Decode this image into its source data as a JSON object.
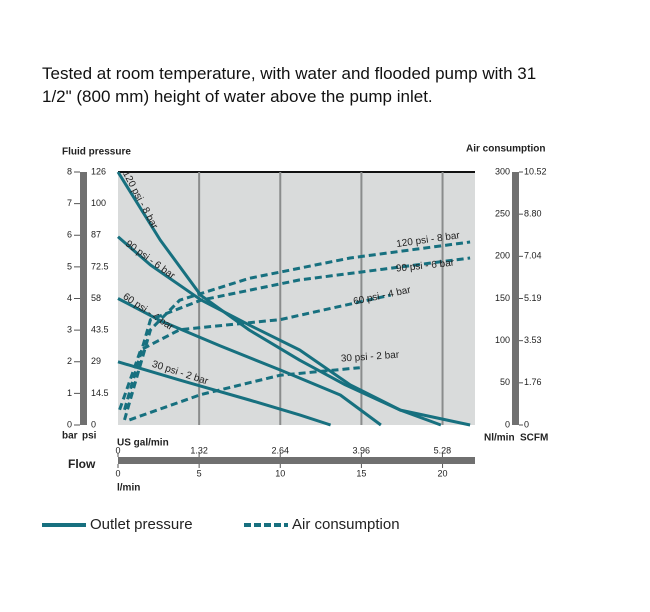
{
  "caption": "Tested at room temperature, with water and flooded pump with 31 1/2\" (800 mm) height of water above the pump inlet.",
  "chart_data": {
    "type": "line",
    "y_title": "Fluid pressure",
    "y2_title": "Air consumption",
    "y_unit": "bar",
    "y_alt_unit": "psi",
    "y2_unit": "Nl/min",
    "y2_alt_unit": "SCFM",
    "x_title": "Flow",
    "x_unit": "l/min",
    "x2_unit": "US gal/min",
    "xlim": [
      0,
      22
    ],
    "xticks": [
      0,
      5,
      10,
      15,
      20
    ],
    "x2lim": [
      0,
      5.81
    ],
    "x2ticks": [
      0,
      1.32,
      2.64,
      3.96,
      5.28
    ],
    "ylim": [
      0,
      8
    ],
    "yticks": [
      0,
      1,
      2,
      3,
      4,
      5,
      6,
      7,
      8
    ],
    "y_alt_ticks": [
      0,
      14.5,
      29,
      43.5,
      58,
      72.5,
      87,
      100,
      126
    ],
    "y2lim": [
      0,
      300
    ],
    "y2ticks": [
      0,
      50,
      100,
      150,
      200,
      250,
      300
    ],
    "y2_alt_ticks": [
      0,
      1.76,
      3.53,
      5.19,
      7.04,
      {
        "value": 8.8,
        "label": "8.80"
      },
      10.52
    ],
    "grid": true,
    "legend": [
      {
        "name": "Outlet pressure",
        "style": "solid"
      },
      {
        "name": "Air consumption",
        "style": "dashed"
      }
    ],
    "series": [
      {
        "name": "120 psi - 8 bar",
        "color": "#17707f",
        "style": "solid",
        "axis": "y",
        "x": [
          0,
          2.6,
          5.1,
          8.1,
          11.2,
          14,
          17.4,
          21.7
        ],
        "values": [
          8,
          5.85,
          4.1,
          3.0,
          2.05,
          1.27,
          0.47,
          0
        ]
      },
      {
        "name": "90 psi - 6 bar",
        "color": "#17707f",
        "style": "solid",
        "axis": "y",
        "x": [
          0,
          2,
          5.1,
          8.1,
          11.2,
          14.3,
          17.4,
          19.9
        ],
        "values": [
          5.95,
          5.06,
          3.96,
          3.16,
          2.37,
          1.27,
          0.47,
          0
        ]
      },
      {
        "name": "60 psi - 4 bar",
        "color": "#17707f",
        "style": "solid",
        "axis": "y",
        "x": [
          0,
          2.6,
          6.3,
          10,
          13.7,
          16.2
        ],
        "values": [
          4.0,
          3.3,
          2.5,
          1.74,
          0.95,
          0
        ]
      },
      {
        "name": "30 psi - 2 bar",
        "color": "#17707f",
        "style": "solid",
        "axis": "y",
        "x": [
          0,
          3.8,
          8.1,
          11.2,
          13.1
        ],
        "values": [
          2.0,
          1.42,
          0.79,
          0.32,
          0
        ]
      },
      {
        "name": "120 psi - 8 bar",
        "color": "#17707f",
        "style": "dashed",
        "axis": "y2",
        "x": [
          0.4,
          2,
          3.8,
          8.1,
          14.3,
          21.7
        ],
        "values": [
          6,
          113,
          148,
          174,
          198,
          217
        ]
      },
      {
        "name": "90 psi - 6 bar",
        "color": "#17707f",
        "style": "dashed",
        "axis": "y2",
        "x": [
          0.4,
          2,
          5.1,
          11.2,
          21.7
        ],
        "values": [
          18,
          125,
          148,
          172,
          198
        ]
      },
      {
        "name": "60 psi - 4 bar",
        "color": "#17707f",
        "style": "dashed",
        "axis": "y2",
        "x": [
          0.1,
          1.4,
          3.8,
          10,
          16.8
        ],
        "values": [
          18,
          89,
          113,
          125,
          154
        ]
      },
      {
        "name": "30 psi - 2 bar",
        "color": "#17707f",
        "style": "dashed",
        "axis": "y2",
        "x": [
          0.7,
          5.1,
          10,
          14.9
        ],
        "values": [
          6,
          36,
          59,
          68
        ]
      }
    ]
  }
}
